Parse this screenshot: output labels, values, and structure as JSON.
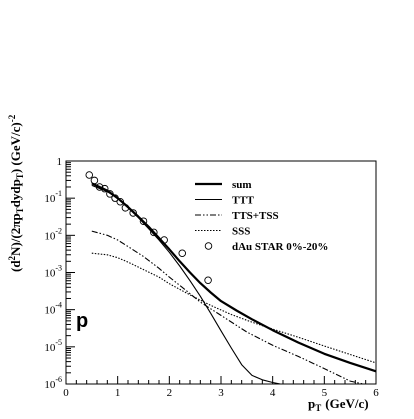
{
  "chart_data": {
    "type": "line",
    "xlabel_main": "p",
    "xlabel_sub": "T",
    "xlabel_unit": "(GeV/c)",
    "ylabel_parts": [
      "(d",
      "2",
      "N)/(2",
      "π",
      "p",
      "T",
      "dydp",
      "T",
      ") (GeV/c)",
      "-2"
    ],
    "xlim": [
      0,
      6
    ],
    "ylim": [
      1e-06,
      1
    ],
    "yscale": "log",
    "x_ticks": [
      "0",
      "1",
      "2",
      "3",
      "4",
      "5",
      "6"
    ],
    "y_ticks": [
      {
        "base": "10",
        "exp": "-6"
      },
      {
        "base": "10",
        "exp": "-5"
      },
      {
        "base": "10",
        "exp": "-4"
      },
      {
        "base": "10",
        "exp": "-3"
      },
      {
        "base": "10",
        "exp": "-2"
      },
      {
        "base": "10",
        "exp": "-1"
      },
      {
        "base": "1",
        "exp": ""
      }
    ],
    "panel_label": "p",
    "legend_position": "top-right",
    "series": [
      {
        "name": "sum",
        "style": "solid-thick",
        "x": [
          0.5,
          0.8,
          1.0,
          1.2,
          1.4,
          1.6,
          1.8,
          2.0,
          2.2,
          2.4,
          2.6,
          2.8,
          3.0,
          3.3,
          3.6,
          4.0,
          4.5,
          5.0,
          5.5,
          6.0
        ],
        "y": [
          0.25,
          0.16,
          0.1,
          0.058,
          0.032,
          0.017,
          0.0085,
          0.0042,
          0.002,
          0.001,
          0.00052,
          0.00029,
          0.00017,
          9.5e-05,
          5.5e-05,
          2.8e-05,
          1.3e-05,
          6.5e-06,
          3.7e-06,
          2.2e-06
        ]
      },
      {
        "name": "TTT",
        "style": "solid-thin",
        "x": [
          0.5,
          0.8,
          1.0,
          1.2,
          1.4,
          1.6,
          1.8,
          2.0,
          2.2,
          2.4,
          2.6,
          2.8,
          3.0,
          3.2,
          3.4,
          3.6,
          3.8,
          4.0,
          4.15
        ],
        "y": [
          0.22,
          0.15,
          0.1,
          0.055,
          0.03,
          0.015,
          0.0075,
          0.0035,
          0.0015,
          0.0006,
          0.00023,
          8e-05,
          2.7e-05,
          9.3e-06,
          3.3e-06,
          1.7e-06,
          1.3e-06,
          1.1e-06,
          1e-06
        ]
      },
      {
        "name": "TTS+TSS",
        "style": "dash-dot",
        "x": [
          0.5,
          0.8,
          1.0,
          1.2,
          1.5,
          1.8,
          2.0,
          2.3,
          2.6,
          3.0,
          3.5,
          4.0,
          4.5,
          5.0,
          5.5,
          5.75
        ],
        "y": [
          0.013,
          0.01,
          0.0075,
          0.005,
          0.0027,
          0.0013,
          0.00075,
          0.00035,
          0.00016,
          7e-05,
          2.5e-05,
          1.1e-05,
          5.5e-06,
          2.6e-06,
          1.2e-06,
          1e-06
        ]
      },
      {
        "name": "SSS",
        "style": "dotted",
        "x": [
          0.5,
          0.8,
          1.0,
          1.2,
          1.5,
          1.8,
          2.0,
          2.4,
          2.8,
          3.2,
          3.6,
          4.0,
          4.5,
          5.0,
          5.5,
          6.0
        ],
        "y": [
          0.0033,
          0.003,
          0.0025,
          0.0019,
          0.0012,
          0.00075,
          0.0005,
          0.00025,
          0.00013,
          7.4e-05,
          4.6e-05,
          3e-05,
          1.8e-05,
          1.05e-05,
          6.2e-06,
          3.7e-06
        ]
      },
      {
        "name": "dAu STAR 0%-20%",
        "style": "open-circle",
        "x": [
          0.45,
          0.55,
          0.65,
          0.75,
          0.85,
          0.95,
          1.05,
          1.15,
          1.3,
          1.5,
          1.7,
          1.9,
          2.25,
          2.75
        ],
        "y": [
          0.42,
          0.3,
          0.2,
          0.18,
          0.13,
          0.1,
          0.08,
          0.055,
          0.04,
          0.024,
          0.012,
          0.0075,
          0.0033,
          0.00062
        ]
      }
    ]
  }
}
